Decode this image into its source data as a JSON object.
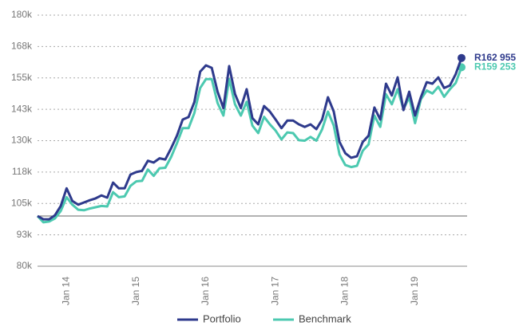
{
  "chart_data": {
    "type": "line",
    "categories": [
      null,
      null,
      null,
      null,
      null,
      "Jan 14",
      null,
      null,
      null,
      null,
      null,
      null,
      null,
      null,
      null,
      null,
      null,
      "Jan 15",
      null,
      null,
      null,
      null,
      null,
      null,
      null,
      null,
      null,
      null,
      null,
      "Jan 16",
      null,
      null,
      null,
      null,
      null,
      null,
      null,
      null,
      null,
      null,
      null,
      "Jan 17",
      null,
      null,
      null,
      null,
      null,
      null,
      null,
      null,
      null,
      null,
      null,
      "Jan 18",
      null,
      null,
      null,
      null,
      null,
      null,
      null,
      null,
      null,
      null,
      null,
      "Jan 19",
      null,
      null,
      null,
      null,
      null,
      null,
      null,
      null
    ],
    "series": [
      {
        "name": "Portfolio",
        "color": "#2e3a8c",
        "values": [
          100000,
          98700,
          98700,
          100300,
          104000,
          111000,
          106000,
          104500,
          105400,
          106300,
          107000,
          108200,
          107300,
          113300,
          111000,
          111000,
          116500,
          117500,
          118000,
          122000,
          121300,
          123000,
          122500,
          127000,
          132000,
          138400,
          139400,
          145400,
          157500,
          160000,
          159000,
          149500,
          143000,
          159700,
          148600,
          143000,
          150500,
          139000,
          136500,
          143800,
          141600,
          138400,
          135000,
          138000,
          138000,
          136500,
          135500,
          136500,
          134600,
          138400,
          147300,
          141600,
          129500,
          125000,
          123200,
          123800,
          129500,
          132000,
          143200,
          138400,
          152700,
          148000,
          155200,
          142200,
          149500,
          140000,
          147300,
          153300,
          152700,
          155200,
          151000,
          152000,
          156500,
          162955
        ],
        "value_labels": [
          null,
          null,
          null,
          null,
          null,
          null,
          null,
          null,
          null,
          null,
          null,
          null,
          null,
          null,
          null,
          null,
          null,
          null,
          null,
          null,
          null,
          null,
          null,
          null,
          null,
          null,
          null,
          null,
          null,
          null,
          null,
          null,
          null,
          null,
          null,
          null,
          null,
          null,
          null,
          null,
          null,
          null,
          null,
          null,
          null,
          null,
          null,
          null,
          null,
          null,
          null,
          null,
          null,
          null,
          null,
          null,
          null,
          null,
          null,
          null,
          null,
          null,
          null,
          null,
          null,
          null,
          null,
          null,
          null,
          null,
          null,
          null,
          null,
          "R162 955"
        ]
      },
      {
        "name": "Benchmark",
        "color": "#4cc9b0",
        "values": [
          100000,
          97500,
          97800,
          99000,
          102000,
          107500,
          104500,
          102500,
          102300,
          103000,
          103500,
          104000,
          103800,
          109500,
          107500,
          107800,
          112000,
          113800,
          114000,
          118500,
          116000,
          119000,
          119200,
          123500,
          129000,
          135000,
          135000,
          141000,
          151000,
          154500,
          154500,
          145000,
          140000,
          154500,
          144500,
          140000,
          145500,
          136000,
          133000,
          139500,
          136500,
          134000,
          130500,
          133300,
          133000,
          130200,
          130000,
          131500,
          130000,
          134500,
          141600,
          136000,
          124500,
          120300,
          119500,
          120000,
          126000,
          128500,
          140000,
          135500,
          148500,
          144500,
          150500,
          142500,
          147300,
          137000,
          146500,
          150000,
          148800,
          151500,
          147500,
          150500,
          153000,
          159253
        ],
        "value_labels": [
          null,
          null,
          null,
          null,
          null,
          null,
          null,
          null,
          null,
          null,
          null,
          null,
          null,
          null,
          null,
          null,
          null,
          null,
          null,
          null,
          null,
          null,
          null,
          null,
          null,
          null,
          null,
          null,
          null,
          null,
          null,
          null,
          null,
          null,
          null,
          null,
          null,
          null,
          null,
          null,
          null,
          null,
          null,
          null,
          null,
          null,
          null,
          null,
          null,
          null,
          null,
          null,
          null,
          null,
          null,
          null,
          null,
          null,
          null,
          null,
          null,
          null,
          null,
          null,
          null,
          null,
          null,
          null,
          null,
          null,
          null,
          null,
          null,
          "R159 253"
        ]
      }
    ],
    "ylim": [
      80000,
      180000
    ],
    "yticks": [
      {
        "value": 80000,
        "label": "80k"
      },
      {
        "value": 92500,
        "label": "93k"
      },
      {
        "value": 105000,
        "label": "105k"
      },
      {
        "value": 117500,
        "label": "118k"
      },
      {
        "value": 130000,
        "label": "130k"
      },
      {
        "value": 142500,
        "label": "143k"
      },
      {
        "value": 155000,
        "label": "155k"
      },
      {
        "value": 167500,
        "label": "168k"
      },
      {
        "value": 180000,
        "label": "180k"
      }
    ],
    "reference_line": 100000,
    "grid": true,
    "legend": "bottom"
  }
}
